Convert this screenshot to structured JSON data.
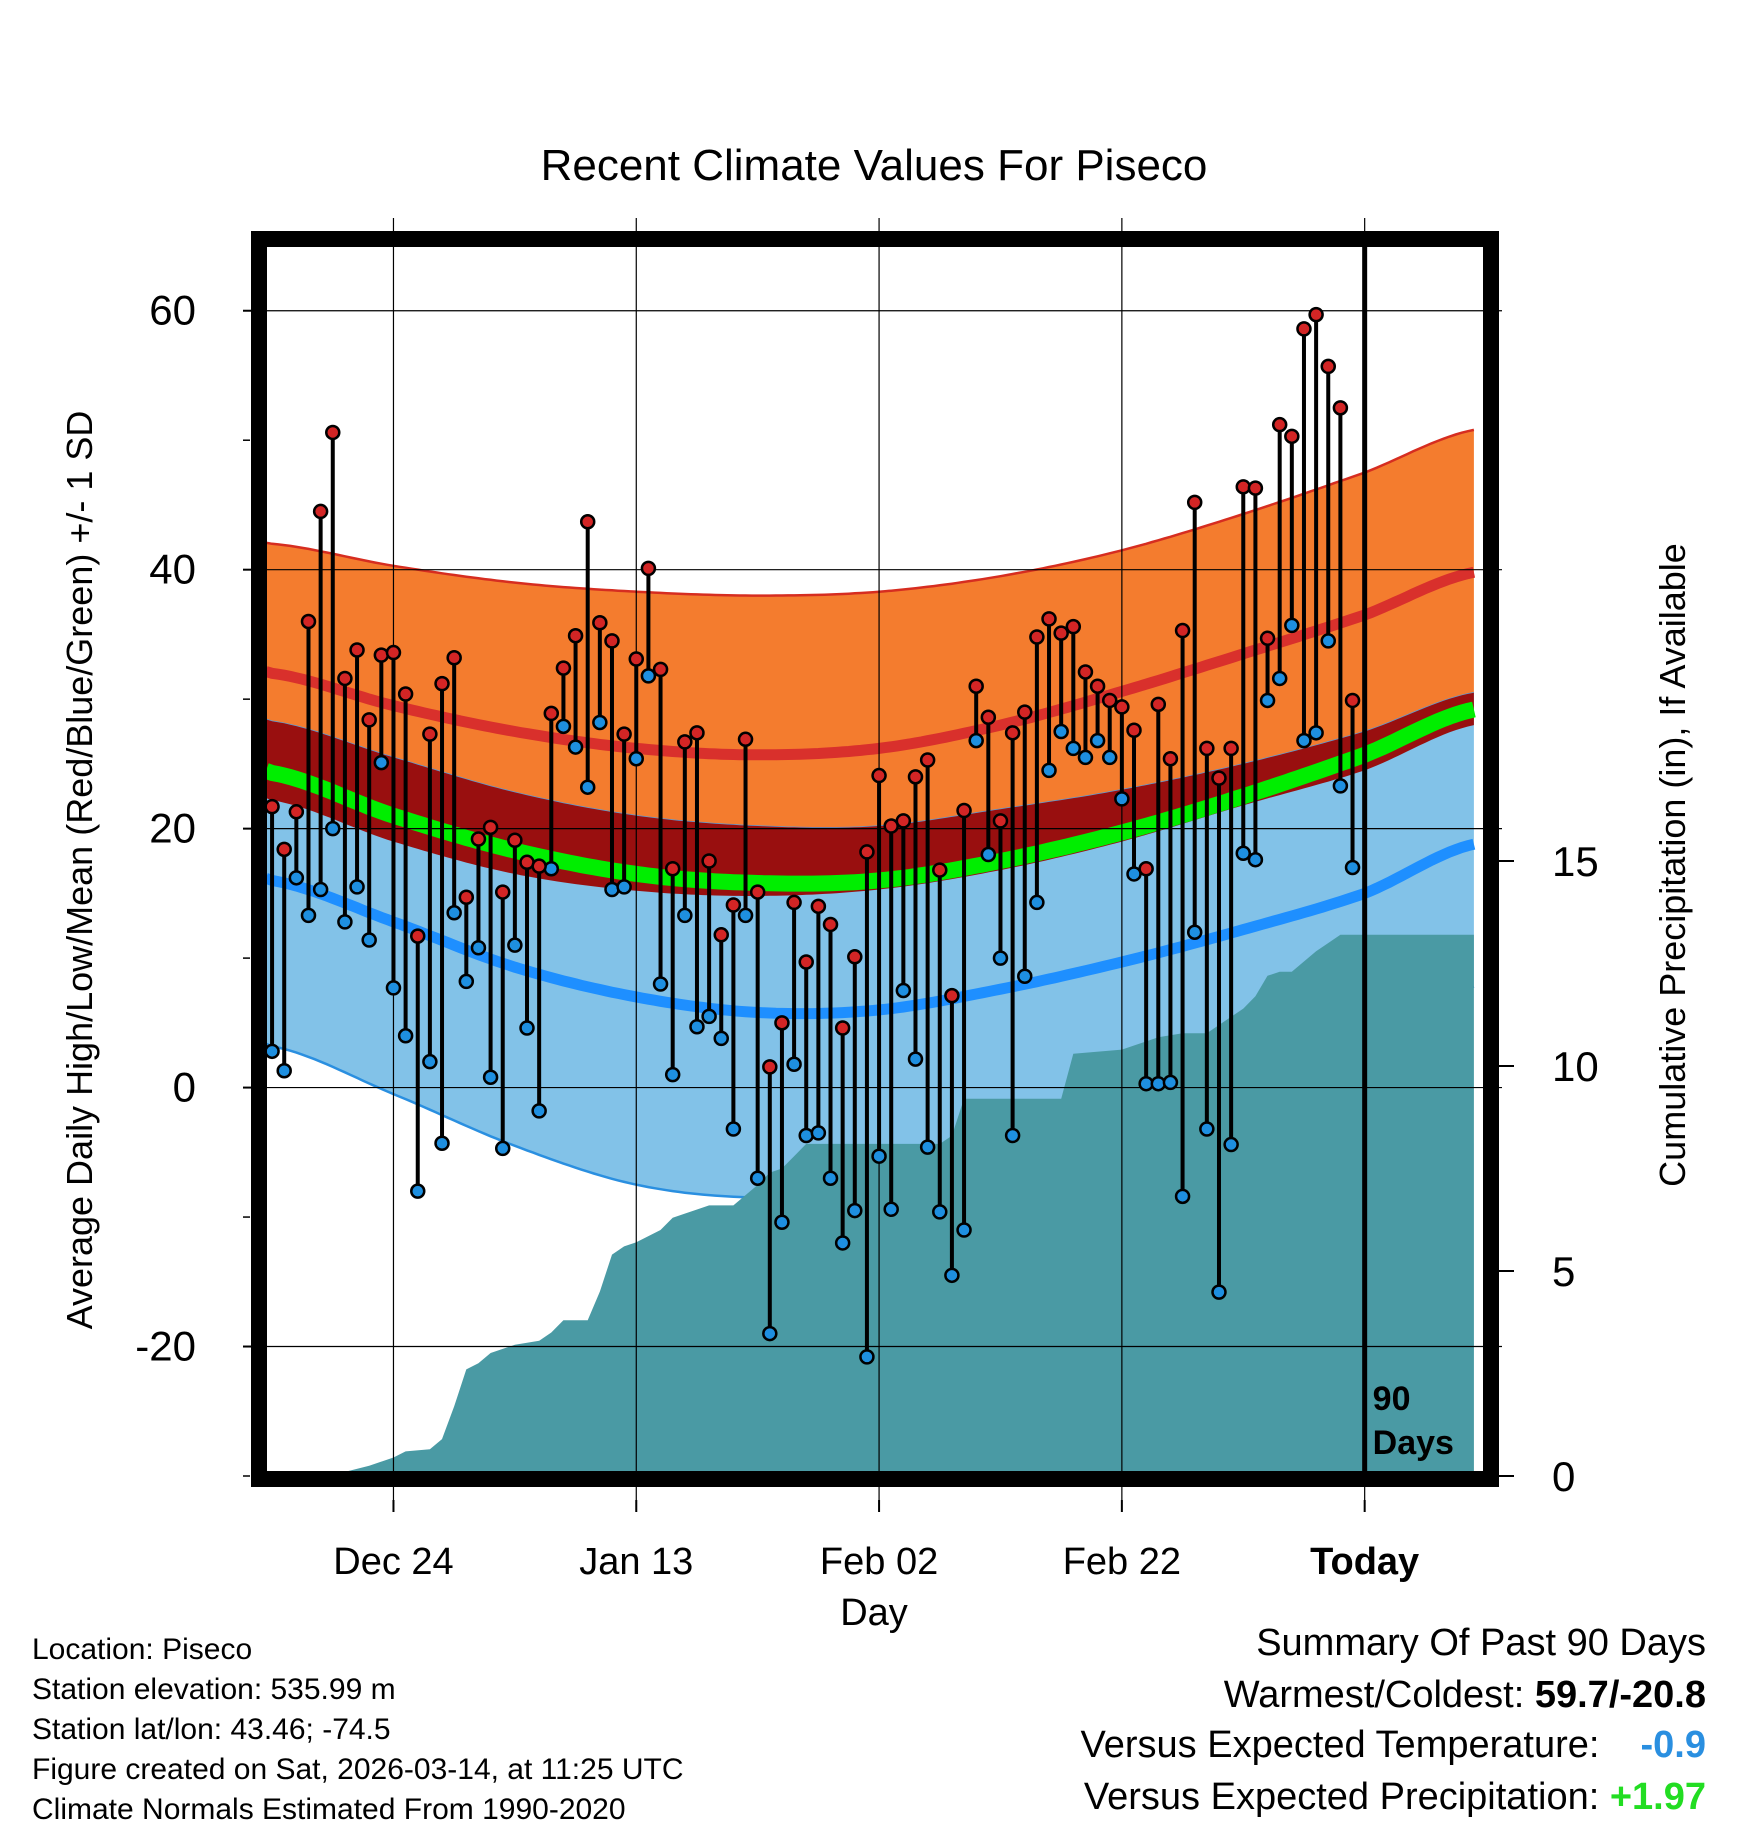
{
  "chart_data": {
    "type": "line",
    "title": "Recent Climate Values For Piseco",
    "xlabel": "Day",
    "ylabel": "Average Daily High/Low/Mean (Red/Blue/Green) +/- 1 SD",
    "y2label": "Cumulative Precipitation (in), If Available",
    "ylim": [
      -30,
      65
    ],
    "y2lim": [
      0,
      30
    ],
    "xlim": [
      -90.5,
      9.5
    ],
    "x_units": "days relative to today",
    "x_ticks": [
      {
        "x": -80,
        "label": "Dec 24"
      },
      {
        "x": -60,
        "label": "Jan 13"
      },
      {
        "x": -40,
        "label": "Feb 02"
      },
      {
        "x": -20,
        "label": "Feb 22"
      },
      {
        "x": 0,
        "label": "Today"
      }
    ],
    "y_ticks": [
      -20,
      0,
      20,
      40,
      60
    ],
    "y2_ticks": [
      0,
      5,
      10,
      15
    ],
    "grid": true,
    "today_marker_label": "90 Days",
    "colors": {
      "high_band": "#f47c2e",
      "high_band_edge": "#d62d20",
      "high_mean": "#d9302c",
      "low_band": "#82c2e8",
      "low_band_edge": "#2a8fe0",
      "low_mean": "#1e8fff",
      "mean_band": "#990f0f",
      "mean_line": "#00ee00",
      "precip": "#4a9aa4",
      "high_marker": "#d32525",
      "low_marker": "#1e8fe0",
      "stem": "#000000"
    },
    "normals": {
      "x": [
        -90,
        -80,
        -70,
        -60,
        -50,
        -40,
        -30,
        -20,
        -10,
        0,
        9
      ],
      "high_mean": [
        32,
        29.5,
        27.5,
        26.2,
        25.7,
        26.2,
        28,
        30.6,
        33.5,
        36.5,
        39.8
      ],
      "high_plus_sd": [
        42,
        40.3,
        39,
        38.3,
        38,
        38.3,
        39.5,
        41.5,
        44.3,
        47.5,
        50.8
      ],
      "high_minus_sd": [
        28.3,
        25.5,
        22.8,
        21,
        20.2,
        20.2,
        21.5,
        23,
        25,
        27.5,
        30.5
      ],
      "mean": [
        24.3,
        21,
        18.3,
        16.5,
        15.8,
        16,
        17.5,
        19.7,
        22.5,
        25.7,
        29.2
      ],
      "mean_plus_sd": [
        28.3,
        25.5,
        22.8,
        21,
        20.2,
        20.2,
        21.5,
        23,
        25,
        27.5,
        30.5
      ],
      "mean_minus_sd": [
        22.2,
        19,
        16.5,
        15.2,
        14.8,
        15.3,
        16.8,
        19,
        21.8,
        24.5,
        28
      ],
      "low_mean": [
        16,
        12.8,
        9.3,
        7,
        5.8,
        6,
        7.6,
        9.7,
        12.2,
        15,
        18.8
      ],
      "low_plus_sd": [
        28.3,
        25.5,
        22.8,
        21,
        20.2,
        20.2,
        21.5,
        23,
        25,
        27.5,
        30.5
      ],
      "low_minus_sd": [
        3.2,
        -0.5,
        -4.5,
        -7.5,
        -8.5,
        -8,
        -6.5,
        -4,
        -1.5,
        2.5,
        7.8
      ]
    },
    "series": [
      {
        "name": "Daily High",
        "x": [
          -90,
          -89,
          -88,
          -87,
          -86,
          -85,
          -84,
          -83,
          -82,
          -81,
          -80,
          -79,
          -78,
          -77,
          -76,
          -75,
          -74,
          -73,
          -72,
          -71,
          -70,
          -69,
          -68,
          -67,
          -66,
          -65,
          -64,
          -63,
          -62,
          -61,
          -60,
          -59,
          -58,
          -57,
          -56,
          -55,
          -54,
          -53,
          -52,
          -51,
          -50,
          -49,
          -48,
          -47,
          -46,
          -45,
          -44,
          -43,
          -42,
          -41,
          -40,
          -39,
          -38,
          -37,
          -36,
          -35,
          -34,
          -33,
          -32,
          -31,
          -30,
          -29,
          -28,
          -27,
          -26,
          -25,
          -24,
          -23,
          -22,
          -21,
          -20,
          -19,
          -18,
          -17,
          -16,
          -15,
          -14,
          -13,
          -12,
          -11,
          -10,
          -9,
          -8,
          -7,
          -6,
          -5,
          -4,
          -3,
          -2,
          -1
        ],
        "values": [
          21.7,
          18.4,
          21.3,
          36,
          44.5,
          50.6,
          31.6,
          33.8,
          28.4,
          33.4,
          33.6,
          30.4,
          11.7,
          27.3,
          31.2,
          33.2,
          14.7,
          19.2,
          20.1,
          15.1,
          19.1,
          17.4,
          17.1,
          28.9,
          32.4,
          34.9,
          43.7,
          35.9,
          34.5,
          27.3,
          33.1,
          40.1,
          32.3,
          16.9,
          26.7,
          27.4,
          17.5,
          11.8,
          14.1,
          26.9,
          15.1,
          1.6,
          5,
          14.3,
          9.7,
          14,
          12.6,
          4.6,
          10.1,
          18.2,
          24.1,
          20.2,
          20.6,
          24,
          25.3,
          16.8,
          7.1,
          21.4,
          31,
          28.6,
          20.6,
          27.4,
          29,
          34.8,
          36.2,
          35.1,
          35.6,
          32.1,
          31,
          29.9,
          29.4,
          27.6,
          16.9,
          29.6,
          25.4,
          35.3,
          45.2,
          26.2,
          23.9,
          26.2,
          46.4,
          46.3,
          34.7,
          51.2,
          50.3,
          58.6,
          59.7,
          55.7,
          52.5,
          29.9
        ]
      },
      {
        "name": "Daily Low",
        "x": [
          -90,
          -89,
          -88,
          -87,
          -86,
          -85,
          -84,
          -83,
          -82,
          -81,
          -80,
          -79,
          -78,
          -77,
          -76,
          -75,
          -74,
          -73,
          -72,
          -71,
          -70,
          -69,
          -68,
          -67,
          -66,
          -65,
          -64,
          -63,
          -62,
          -61,
          -60,
          -59,
          -58,
          -57,
          -56,
          -55,
          -54,
          -53,
          -52,
          -51,
          -50,
          -49,
          -48,
          -47,
          -46,
          -45,
          -44,
          -43,
          -42,
          -41,
          -40,
          -39,
          -38,
          -37,
          -36,
          -35,
          -34,
          -33,
          -32,
          -31,
          -30,
          -29,
          -28,
          -27,
          -26,
          -25,
          -24,
          -23,
          -22,
          -21,
          -20,
          -19,
          -18,
          -17,
          -16,
          -15,
          -14,
          -13,
          -12,
          -11,
          -10,
          -9,
          -8,
          -7,
          -6,
          -5,
          -4,
          -3,
          -2,
          -1
        ],
        "values": [
          2.8,
          1.3,
          16.2,
          13.3,
          15.3,
          20,
          12.8,
          15.5,
          11.4,
          25.1,
          7.7,
          4,
          -8,
          2,
          -4.3,
          13.5,
          8.2,
          10.8,
          0.8,
          -4.7,
          11,
          4.6,
          -1.8,
          16.9,
          27.9,
          26.3,
          23.2,
          28.2,
          15.3,
          15.5,
          25.4,
          31.8,
          8,
          1,
          13.3,
          4.7,
          5.5,
          3.8,
          -3.2,
          13.3,
          -7,
          -19,
          -10.4,
          1.8,
          -3.7,
          -3.5,
          -7,
          -12,
          -9.5,
          -20.8,
          -5.3,
          -9.4,
          7.5,
          2.2,
          -4.6,
          -9.6,
          -14.5,
          -11,
          26.8,
          18,
          10,
          -3.7,
          8.6,
          14.3,
          24.5,
          27.5,
          26.2,
          25.5,
          26.8,
          25.5,
          22.3,
          16.5,
          0.3,
          0.3,
          0.4,
          -8.4,
          12,
          -3.2,
          -15.8,
          -4.4,
          18.1,
          17.6,
          29.9,
          31.6,
          35.7,
          26.8,
          27.4,
          34.5,
          23.3,
          17
        ]
      }
    ],
    "precipitation": {
      "name": "Cumulative Precipitation",
      "x": [
        -90,
        -85,
        -84,
        -82,
        -80,
        -79,
        -77,
        -76,
        -75,
        -74,
        -73,
        -72,
        -70,
        -68,
        -67,
        -66,
        -64,
        -63,
        -62,
        -61,
        -60,
        -58,
        -57,
        -56,
        -55,
        -54,
        -52,
        -50,
        -49,
        -48,
        -47,
        -46,
        -45,
        -40,
        -35,
        -34,
        -33,
        -32,
        -25,
        -24,
        -20,
        -19,
        -17,
        -15,
        -13,
        -12,
        -10,
        -9,
        -8,
        -7,
        -6,
        -4,
        -3,
        -2,
        -1,
        0,
        9
      ],
      "values": [
        0,
        0,
        0.1,
        0.25,
        0.45,
        0.6,
        0.65,
        0.9,
        1.7,
        2.6,
        2.75,
        3,
        3.2,
        3.3,
        3.5,
        3.8,
        3.8,
        4.5,
        5.4,
        5.6,
        5.7,
        6,
        6.3,
        6.4,
        6.5,
        6.6,
        6.6,
        7.1,
        7.4,
        7.5,
        7.8,
        8.1,
        8.1,
        8.1,
        8.1,
        8.3,
        9.2,
        9.2,
        9.2,
        10.3,
        10.4,
        10.5,
        10.7,
        10.8,
        10.8,
        11.0,
        11.4,
        11.7,
        12.2,
        12.3,
        12.3,
        12.8,
        13.0,
        13.2,
        13.2,
        13.2,
        13.2
      ]
    }
  },
  "meta": {
    "location": "Location: Piseco",
    "elevation": "Station elevation: 535.99 m",
    "latlon": "Station lat/lon: 43.46; -74.5",
    "created": "Figure created on Sat, 2026-03-14, at 11:25 UTC",
    "normals": "Climate Normals Estimated From 1990-2020"
  },
  "summary": {
    "title": "Summary Of Past 90 Days",
    "warmest_label": "Warmest/Coldest:",
    "warmest_value": "59.7/-20.8",
    "temp_label": "Versus Expected Temperature:",
    "temp_value": "-0.9",
    "temp_color": "#2a8fe0",
    "precip_label": "Versus Expected Precipitation:",
    "precip_value": "+1.97",
    "precip_color": "#22dd22"
  }
}
